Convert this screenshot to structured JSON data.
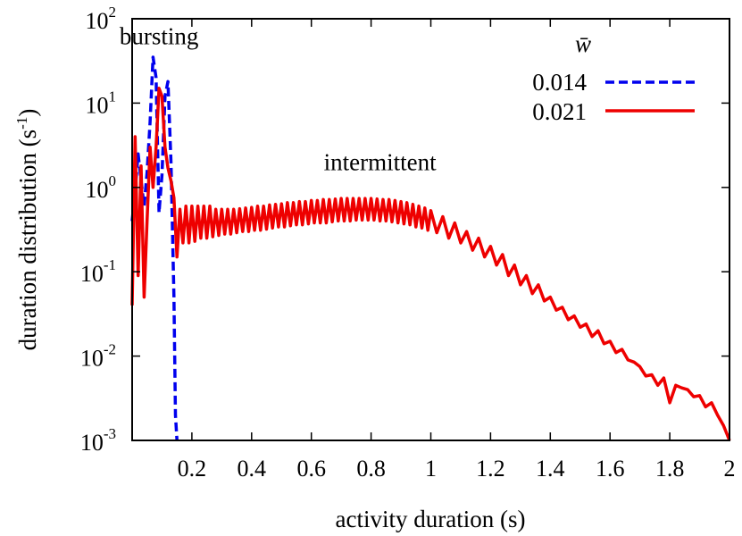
{
  "chart_data": {
    "type": "line",
    "xlabel": "activity duration (s)",
    "ylabel": "duration distribution (s",
    "ylabel_exp": "-1",
    "ylabel_close": ")",
    "xlim": [
      0,
      2
    ],
    "ylim": [
      0.001,
      100
    ],
    "yscale": "log",
    "grid": false,
    "legend_position": "top-right",
    "legend_title": "w̄",
    "x_ticks": [
      "0.2",
      "0.4",
      "0.6",
      "0.8",
      "1",
      "1.2",
      "1.4",
      "1.6",
      "1.8",
      "2"
    ],
    "y_ticks": [
      {
        "base": "10",
        "exp": "-3"
      },
      {
        "base": "10",
        "exp": "-2"
      },
      {
        "base": "10",
        "exp": "-1"
      },
      {
        "base": "10",
        "exp": "0"
      },
      {
        "base": "10",
        "exp": "1"
      },
      {
        "base": "10",
        "exp": "2"
      }
    ],
    "annotations": [
      {
        "text": "bursting",
        "x": 0.09,
        "y": 50
      },
      {
        "text": "intermittent",
        "x": 0.83,
        "y": 1.6
      }
    ],
    "series": [
      {
        "name": "0.014",
        "color": "#0000ee",
        "dash": "dashed",
        "points": [
          [
            0.0,
            0.4
          ],
          [
            0.01,
            0.9
          ],
          [
            0.02,
            2.5
          ],
          [
            0.03,
            1.2
          ],
          [
            0.04,
            0.6
          ],
          [
            0.05,
            1.5
          ],
          [
            0.06,
            6.0
          ],
          [
            0.07,
            35
          ],
          [
            0.08,
            20
          ],
          [
            0.09,
            0.5
          ],
          [
            0.1,
            1.4
          ],
          [
            0.11,
            12
          ],
          [
            0.12,
            18
          ],
          [
            0.13,
            2.0
          ],
          [
            0.14,
            0.05
          ],
          [
            0.145,
            0.002
          ],
          [
            0.15,
            0.001
          ]
        ]
      },
      {
        "name": "0.021",
        "color": "#ee0000",
        "dash": "solid",
        "points": [
          [
            0.0,
            0.04
          ],
          [
            0.01,
            4.0
          ],
          [
            0.02,
            0.09
          ],
          [
            0.03,
            1.8
          ],
          [
            0.04,
            0.05
          ],
          [
            0.05,
            0.4
          ],
          [
            0.06,
            3.0
          ],
          [
            0.07,
            1.0
          ],
          [
            0.08,
            3.0
          ],
          [
            0.09,
            15
          ],
          [
            0.1,
            12
          ],
          [
            0.11,
            3.0
          ],
          [
            0.12,
            1.7
          ],
          [
            0.13,
            1.2
          ],
          [
            0.14,
            0.75
          ],
          [
            0.15,
            0.15
          ],
          [
            0.16,
            0.55
          ],
          [
            0.17,
            0.22
          ],
          [
            0.18,
            0.6
          ],
          [
            0.19,
            0.22
          ],
          [
            0.2,
            0.6
          ],
          [
            0.21,
            0.23
          ],
          [
            0.22,
            0.6
          ],
          [
            0.23,
            0.25
          ],
          [
            0.24,
            0.6
          ],
          [
            0.25,
            0.25
          ],
          [
            0.26,
            0.6
          ],
          [
            0.27,
            0.26
          ],
          [
            0.28,
            0.55
          ],
          [
            0.29,
            0.27
          ],
          [
            0.3,
            0.55
          ],
          [
            0.31,
            0.28
          ],
          [
            0.32,
            0.55
          ],
          [
            0.33,
            0.28
          ],
          [
            0.34,
            0.55
          ],
          [
            0.35,
            0.29
          ],
          [
            0.36,
            0.56
          ],
          [
            0.37,
            0.3
          ],
          [
            0.38,
            0.57
          ],
          [
            0.39,
            0.3
          ],
          [
            0.4,
            0.58
          ],
          [
            0.41,
            0.31
          ],
          [
            0.42,
            0.6
          ],
          [
            0.43,
            0.31
          ],
          [
            0.44,
            0.6
          ],
          [
            0.45,
            0.32
          ],
          [
            0.46,
            0.62
          ],
          [
            0.47,
            0.33
          ],
          [
            0.48,
            0.63
          ],
          [
            0.49,
            0.34
          ],
          [
            0.5,
            0.64
          ],
          [
            0.51,
            0.34
          ],
          [
            0.52,
            0.66
          ],
          [
            0.53,
            0.35
          ],
          [
            0.54,
            0.66
          ],
          [
            0.55,
            0.36
          ],
          [
            0.56,
            0.68
          ],
          [
            0.57,
            0.36
          ],
          [
            0.58,
            0.68
          ],
          [
            0.59,
            0.37
          ],
          [
            0.6,
            0.7
          ],
          [
            0.61,
            0.38
          ],
          [
            0.62,
            0.7
          ],
          [
            0.63,
            0.38
          ],
          [
            0.64,
            0.72
          ],
          [
            0.65,
            0.38
          ],
          [
            0.66,
            0.72
          ],
          [
            0.67,
            0.39
          ],
          [
            0.68,
            0.73
          ],
          [
            0.69,
            0.4
          ],
          [
            0.7,
            0.74
          ],
          [
            0.71,
            0.4
          ],
          [
            0.72,
            0.74
          ],
          [
            0.73,
            0.4
          ],
          [
            0.74,
            0.74
          ],
          [
            0.75,
            0.41
          ],
          [
            0.76,
            0.74
          ],
          [
            0.77,
            0.41
          ],
          [
            0.78,
            0.74
          ],
          [
            0.79,
            0.41
          ],
          [
            0.8,
            0.74
          ],
          [
            0.81,
            0.41
          ],
          [
            0.82,
            0.73
          ],
          [
            0.83,
            0.4
          ],
          [
            0.84,
            0.72
          ],
          [
            0.85,
            0.4
          ],
          [
            0.86,
            0.72
          ],
          [
            0.87,
            0.39
          ],
          [
            0.88,
            0.7
          ],
          [
            0.89,
            0.38
          ],
          [
            0.9,
            0.68
          ],
          [
            0.91,
            0.37
          ],
          [
            0.92,
            0.66
          ],
          [
            0.93,
            0.36
          ],
          [
            0.94,
            0.63
          ],
          [
            0.95,
            0.34
          ],
          [
            0.96,
            0.6
          ],
          [
            0.97,
            0.33
          ],
          [
            0.98,
            0.57
          ],
          [
            0.99,
            0.31
          ],
          [
            1.0,
            0.53
          ],
          [
            1.02,
            0.29
          ],
          [
            1.04,
            0.45
          ],
          [
            1.06,
            0.25
          ],
          [
            1.08,
            0.38
          ],
          [
            1.1,
            0.22
          ],
          [
            1.12,
            0.3
          ],
          [
            1.14,
            0.18
          ],
          [
            1.16,
            0.25
          ],
          [
            1.18,
            0.15
          ],
          [
            1.2,
            0.2
          ],
          [
            1.22,
            0.12
          ],
          [
            1.24,
            0.16
          ],
          [
            1.26,
            0.09
          ],
          [
            1.28,
            0.12
          ],
          [
            1.3,
            0.07
          ],
          [
            1.32,
            0.09
          ],
          [
            1.34,
            0.055
          ],
          [
            1.36,
            0.07
          ],
          [
            1.38,
            0.045
          ],
          [
            1.4,
            0.05
          ],
          [
            1.42,
            0.035
          ],
          [
            1.44,
            0.038
          ],
          [
            1.46,
            0.027
          ],
          [
            1.48,
            0.03
          ],
          [
            1.5,
            0.022
          ],
          [
            1.52,
            0.024
          ],
          [
            1.54,
            0.017
          ],
          [
            1.56,
            0.02
          ],
          [
            1.58,
            0.014
          ],
          [
            1.6,
            0.015
          ],
          [
            1.62,
            0.011
          ],
          [
            1.64,
            0.012
          ],
          [
            1.66,
            0.009
          ],
          [
            1.68,
            0.0085
          ],
          [
            1.7,
            0.0075
          ],
          [
            1.72,
            0.0058
          ],
          [
            1.74,
            0.006
          ],
          [
            1.76,
            0.0045
          ],
          [
            1.78,
            0.0055
          ],
          [
            1.8,
            0.0028
          ],
          [
            1.82,
            0.0045
          ],
          [
            1.84,
            0.0042
          ],
          [
            1.86,
            0.004
          ],
          [
            1.88,
            0.0033
          ],
          [
            1.9,
            0.0034
          ],
          [
            1.92,
            0.0025
          ],
          [
            1.94,
            0.0028
          ],
          [
            1.96,
            0.002
          ],
          [
            1.98,
            0.0015
          ],
          [
            2.0,
            0.001
          ]
        ]
      }
    ]
  }
}
